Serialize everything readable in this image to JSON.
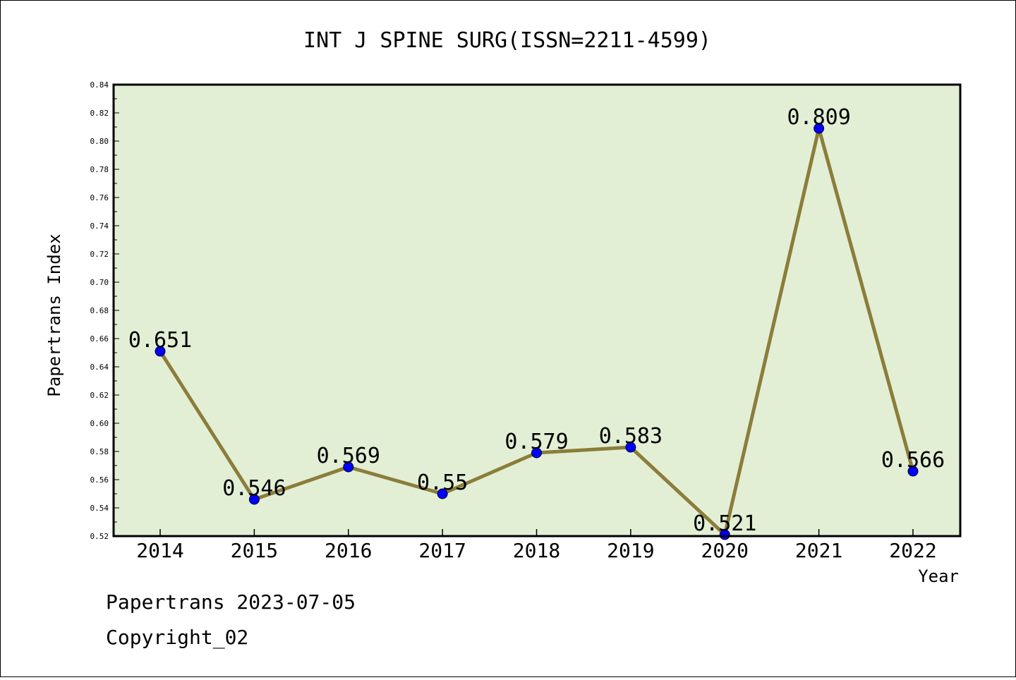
{
  "chart_data": {
    "type": "line",
    "title": "INT J SPINE SURG(ISSN=2211-4599)",
    "xlabel": "Year",
    "ylabel": "Papertrans Index",
    "categories": [
      "2014",
      "2015",
      "2016",
      "2017",
      "2018",
      "2019",
      "2020",
      "2021",
      "2022"
    ],
    "values": [
      0.651,
      0.546,
      0.569,
      0.55,
      0.579,
      0.583,
      0.521,
      0.809,
      0.566
    ],
    "data_labels": [
      "0.651",
      "0.546",
      "0.569",
      "0.55",
      "0.579",
      "0.583",
      "0.521",
      "0.809",
      "0.566"
    ],
    "ylim": [
      0.52,
      0.84
    ],
    "yticks": [
      "0.52",
      "0.54",
      "0.56",
      "0.58",
      "0.60",
      "0.62",
      "0.64",
      "0.66",
      "0.68",
      "0.70",
      "0.72",
      "0.74",
      "0.76",
      "0.78",
      "0.80",
      "0.82",
      "0.84"
    ],
    "grid": false,
    "legend": "none",
    "colors": {
      "plot_background": "#e2efd5",
      "line": "#8b7d3a",
      "marker": "#0000ff"
    }
  },
  "footer": {
    "line1": "Papertrans 2023-07-05",
    "line2": "Copyright_02"
  }
}
